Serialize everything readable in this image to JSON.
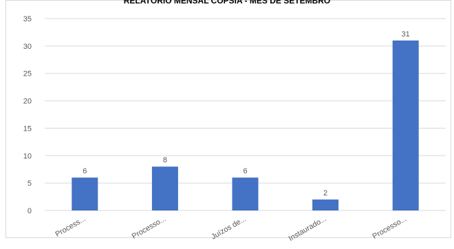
{
  "chart_data": {
    "type": "bar",
    "title": "RELATÓRIO MENSAL COPSIA - MÊS DE SETEMBRO",
    "categories": [
      "Process...",
      "Processo...",
      "Juízos de...",
      "Instaurado...",
      "Processo..."
    ],
    "values": [
      6,
      8,
      6,
      2,
      31
    ],
    "color": "#4472c4",
    "ylim": [
      0,
      35
    ],
    "yticks": [
      0,
      5,
      10,
      15,
      20,
      25,
      30,
      35
    ],
    "grid": true
  }
}
